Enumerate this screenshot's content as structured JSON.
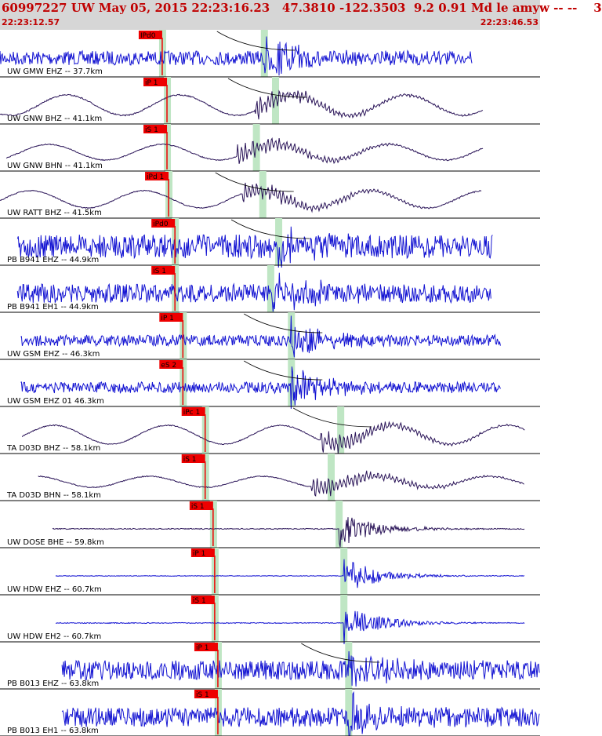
{
  "header": {
    "title": "60997227 UW May 05, 2015 22:23:16.23   47.3810 -122.3503  9.2 0.91 Md le amyw -- --    3",
    "start_time": "22:23:12.57",
    "end_time": "22:23:46.53"
  },
  "colors": {
    "header_bg": "#d6d6d6",
    "header_text": "#c00000",
    "trace_blue": "#1414d2",
    "trace_dark": "#2a1458",
    "pick_red": "#ee0000",
    "window_green": "#bfe6c4",
    "label_text": "#000000"
  },
  "chart_data": {
    "type": "line",
    "xlim": [
      "22:23:12.57",
      "22:23:46.53"
    ],
    "traces": [
      {
        "label": "UW GMW EHZ -- 37.7km",
        "color": "blue",
        "kind": "hf",
        "start": 0,
        "end": 29.7,
        "amp": 5,
        "p_time": 10.2,
        "pick": "IPd0",
        "arrival": 16.6,
        "noise": 1.8,
        "curve": true
      },
      {
        "label": "UW GNW BHZ -- 41.1km",
        "color": "dark",
        "kind": "lp",
        "start": 0,
        "end": 30.4,
        "amp": 13,
        "p_time": 10.5,
        "pick": "iP 1",
        "arrival": 17.3,
        "noise": 0.4,
        "curve": true
      },
      {
        "label": "UW GNW BHN -- 41.1km",
        "color": "dark",
        "kind": "lp",
        "start": 0.4,
        "end": 30.4,
        "amp": 10,
        "p_time": 10.5,
        "pick": "iS 1",
        "arrival": 16.1,
        "noise": 0.3,
        "curve": false
      },
      {
        "label": "UW RATT BHZ -- 41.5km",
        "color": "dark",
        "kind": "lp",
        "start": 0,
        "end": 30.3,
        "amp": 11,
        "p_time": 10.6,
        "pick": "iPd 1",
        "arrival": 16.5,
        "noise": 0.3,
        "curve": true
      },
      {
        "label": "PB B941 EHZ -- 44.9km",
        "color": "blue",
        "kind": "hf",
        "start": 1.1,
        "end": 31.0,
        "amp": 6,
        "p_time": 11.0,
        "pick": "iPd0",
        "arrival": 17.5,
        "noise": 2.5,
        "curve": true
      },
      {
        "label": "PB B941 EH1 -- 44.9km",
        "color": "blue",
        "kind": "hf",
        "start": 1.1,
        "end": 30.9,
        "amp": 6,
        "p_time": 11.0,
        "pick": "iS 1",
        "arrival": 17.0,
        "noise": 2.0,
        "curve": false
      },
      {
        "label": "UW GSM EHZ -- 46.3km",
        "color": "blue",
        "kind": "hf",
        "start": 1.3,
        "end": 31.5,
        "amp": 6,
        "p_time": 11.5,
        "pick": "iP 1",
        "arrival": 18.3,
        "noise": 1.2,
        "curve": true
      },
      {
        "label": "UW GSM EHZ 01 46.3km",
        "color": "blue",
        "kind": "hf",
        "start": 1.3,
        "end": 31.5,
        "amp": 6,
        "p_time": 11.5,
        "pick": "eS 2",
        "arrival": 18.3,
        "noise": 1.2,
        "curve": true
      },
      {
        "label": "TA D03D BHZ -- 58.1km",
        "color": "dark",
        "kind": "lp",
        "start": 1.4,
        "end": 33.0,
        "amp": 12,
        "p_time": 12.9,
        "pick": "iPc 1",
        "arrival": 21.4,
        "noise": 0.3,
        "curve": true
      },
      {
        "label": "TA D03D BHN -- 58.1km",
        "color": "dark",
        "kind": "lp",
        "start": 2.4,
        "end": 33.0,
        "amp": 7,
        "p_time": 12.9,
        "pick": "iS 1",
        "arrival": 20.8,
        "noise": 0.3,
        "curve": false
      },
      {
        "label": "UW DOSE BHE -- 59.8km",
        "color": "dark",
        "kind": "hf",
        "start": 3.3,
        "end": 33.0,
        "amp": 1,
        "p_time": 13.4,
        "pick": "iS 1",
        "arrival": 21.3,
        "noise": 0.6,
        "curve": false
      },
      {
        "label": "UW HDW EHZ -- 60.7km",
        "color": "blue",
        "kind": "hf",
        "start": 3.5,
        "end": 33.0,
        "amp": 1,
        "p_time": 13.5,
        "pick": "iP 1",
        "arrival": 21.6,
        "noise": 0.4,
        "curve": false
      },
      {
        "label": "UW HDW EH2 -- 60.7km",
        "color": "blue",
        "kind": "hf",
        "start": 3.5,
        "end": 33.0,
        "amp": 1,
        "p_time": 13.5,
        "pick": "iS 1",
        "arrival": 21.6,
        "noise": 0.6,
        "curve": false
      },
      {
        "label": "PB B013 EHZ -- 63.8km",
        "color": "blue",
        "kind": "hf",
        "start": 3.9,
        "end": 34.0,
        "amp": 5,
        "p_time": 13.7,
        "pick": "iP 1",
        "arrival": 21.9,
        "noise": 2.5,
        "curve": true
      },
      {
        "label": "PB B013 EH1 -- 63.8km",
        "color": "blue",
        "kind": "hf",
        "start": 3.9,
        "end": 34.0,
        "amp": 5,
        "p_time": 13.7,
        "pick": "iS 1",
        "arrival": 21.9,
        "noise": 2.5,
        "curve": false
      }
    ]
  }
}
